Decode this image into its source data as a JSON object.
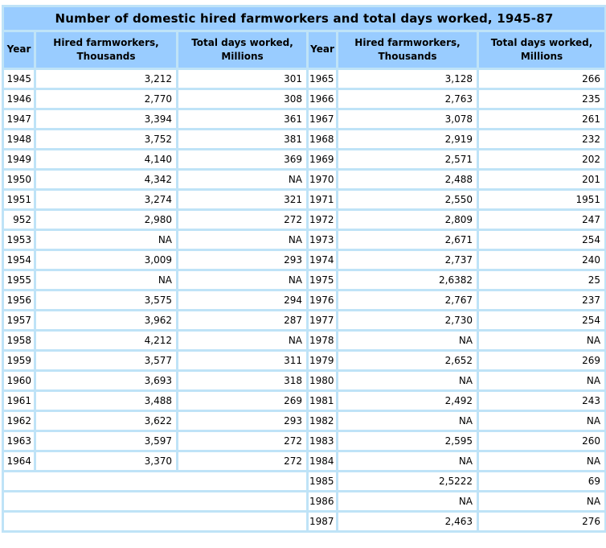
{
  "colors": {
    "header_bg": "#99CCFF",
    "border": "#BFE3F7",
    "cell_bg": "#FFFFFF",
    "text": "#000000"
  },
  "chart_data": {
    "type": "table",
    "title": "Number of domestic hired farmworkers and total days worked, 1945-87",
    "columns": [
      "Year",
      "Hired farmworkers,\nThousands",
      "Total days worked,\nMillions",
      "Year",
      "Hired farmworkers,\nThousands",
      "Total days worked,\nMillions"
    ],
    "rows": [
      {
        "left": [
          "1945",
          "3,212",
          "301"
        ],
        "right": [
          "1965",
          "3,128",
          "266"
        ]
      },
      {
        "left": [
          "1946",
          "2,770",
          "308"
        ],
        "right": [
          "1966",
          "2,763",
          "235"
        ]
      },
      {
        "left": [
          "1947",
          "3,394",
          "361"
        ],
        "right": [
          "1967",
          "3,078",
          "261"
        ]
      },
      {
        "left": [
          "1948",
          "3,752",
          "381"
        ],
        "right": [
          "1968",
          "2,919",
          "232"
        ]
      },
      {
        "left": [
          "1949",
          "4,140",
          "369"
        ],
        "right": [
          "1969",
          "2,571",
          "202"
        ]
      },
      {
        "left": [
          "1950",
          "4,342",
          "NA"
        ],
        "right": [
          "1970",
          "2,488",
          "201"
        ]
      },
      {
        "left": [
          "1951",
          "3,274",
          "321"
        ],
        "right": [
          "1971",
          "2,550",
          "1951"
        ]
      },
      {
        "left": [
          "952",
          "2,980",
          "272"
        ],
        "right": [
          "1972",
          "2,809",
          "247"
        ]
      },
      {
        "left": [
          "1953",
          "NA",
          "NA"
        ],
        "right": [
          "1973",
          "2,671",
          "254"
        ]
      },
      {
        "left": [
          "1954",
          "3,009",
          "293"
        ],
        "right": [
          "1974",
          "2,737",
          "240"
        ]
      },
      {
        "left": [
          "1955",
          "NA",
          "NA"
        ],
        "right": [
          "1975",
          "2,6382",
          "25"
        ]
      },
      {
        "left": [
          "1956",
          "3,575",
          "294"
        ],
        "right": [
          "1976",
          "2,767",
          "237"
        ]
      },
      {
        "left": [
          "1957",
          "3,962",
          "287"
        ],
        "right": [
          "1977",
          "2,730",
          "254"
        ]
      },
      {
        "left": [
          "1958",
          "4,212",
          "NA"
        ],
        "right": [
          "1978",
          "NA",
          "NA"
        ]
      },
      {
        "left": [
          "1959",
          "3,577",
          "311"
        ],
        "right": [
          "1979",
          "2,652",
          "269"
        ]
      },
      {
        "left": [
          "1960",
          "3,693",
          "318"
        ],
        "right": [
          "1980",
          "NA",
          "NA"
        ]
      },
      {
        "left": [
          "1961",
          "3,488",
          "269"
        ],
        "right": [
          "1981",
          "2,492",
          "243"
        ]
      },
      {
        "left": [
          "1962",
          "3,622",
          "293"
        ],
        "right": [
          "1982",
          "NA",
          "NA"
        ]
      },
      {
        "left": [
          "1963",
          "3,597",
          "272"
        ],
        "right": [
          "1983",
          "2,595",
          "260"
        ]
      },
      {
        "left": [
          "1964",
          "3,370",
          "272"
        ],
        "right": [
          "1984",
          "NA",
          "NA"
        ]
      },
      {
        "left": null,
        "right": [
          "1985",
          "2,5222",
          "69"
        ]
      },
      {
        "left": null,
        "right": [
          "1986",
          "NA",
          "NA"
        ]
      },
      {
        "left": null,
        "right": [
          "1987",
          "2,463",
          "276"
        ]
      }
    ]
  }
}
